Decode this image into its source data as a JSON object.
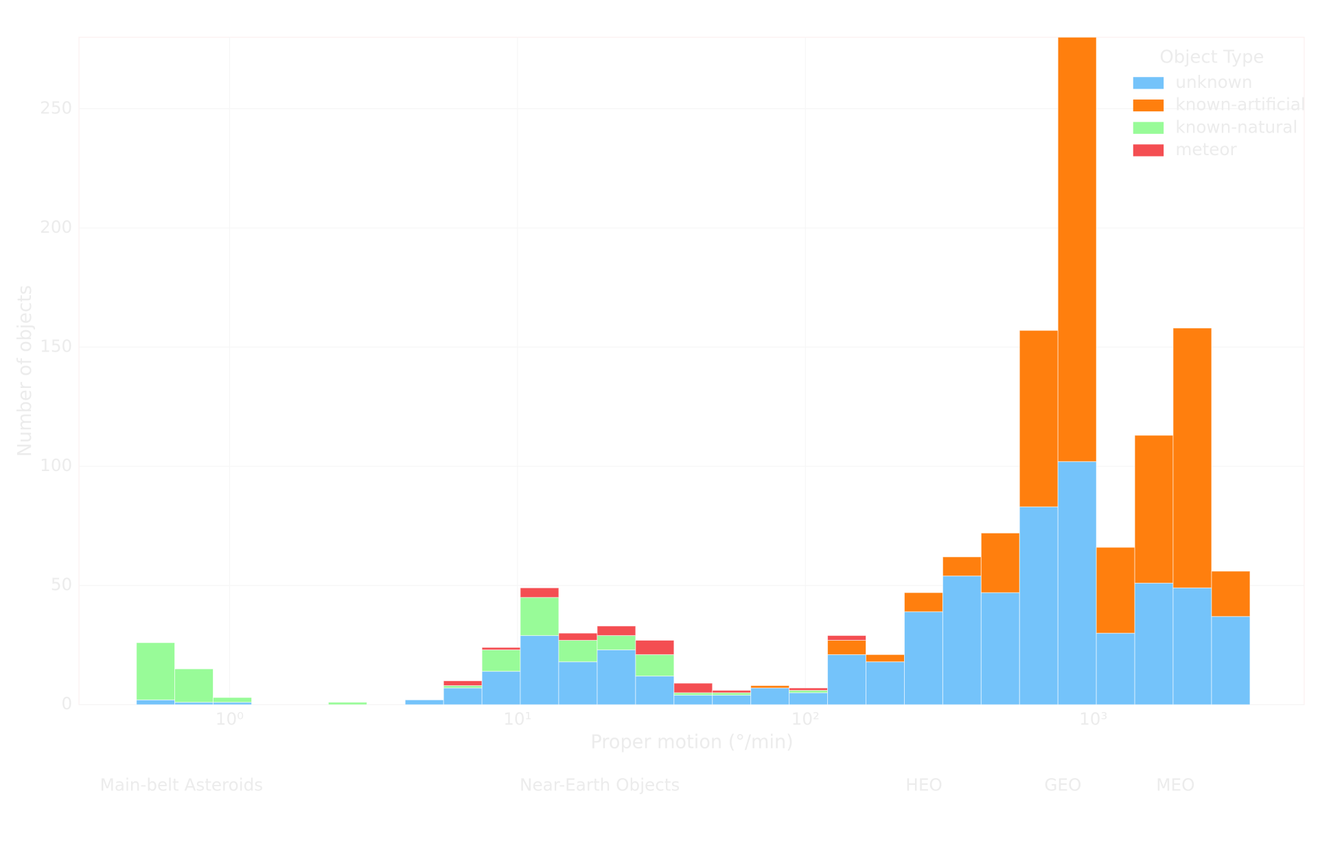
{
  "chart_data": {
    "type": "histogram",
    "x_label": "Proper motion (°/min)",
    "y_label": "Number of objects",
    "legend_title": "Object Type",
    "legend": "upper right",
    "grid": true,
    "log_x": true,
    "stacked": true,
    "bins": [
      0.475,
      0.645,
      0.877,
      1.193,
      1.622,
      2.205,
      2.998,
      4.074,
      5.539,
      7.53,
      10.23,
      13.91,
      18.92,
      25.72,
      34.96,
      47.53,
      64.61,
      87.83,
      119.4,
      162.3,
      220.7,
      300.0,
      407.8,
      554.4,
      753.7,
      1024.5,
      1393,
      1893,
      2574,
      3500
    ],
    "series": [
      {
        "name": "unknown",
        "color": "#74c3fa",
        "values": [
          2,
          1,
          1,
          0,
          0,
          0,
          0,
          2,
          7,
          14,
          29,
          18,
          23,
          12,
          4,
          4,
          7,
          5,
          21,
          18,
          39,
          54,
          47,
          83,
          102,
          30,
          51,
          49,
          37
        ]
      },
      {
        "name": "known-artificial",
        "color": "#ff7f0e",
        "values": [
          0,
          0,
          0,
          0,
          0,
          0,
          0,
          0,
          0,
          0,
          0,
          0,
          0,
          0,
          0,
          0,
          1,
          0,
          6,
          3,
          8,
          8,
          25,
          74,
          178,
          36,
          62,
          109,
          19
        ]
      },
      {
        "name": "known-natural",
        "color": "#98fb98",
        "values": [
          24,
          14,
          2,
          0,
          0,
          1,
          0,
          0,
          1,
          9,
          16,
          9,
          6,
          9,
          1,
          1,
          0,
          1,
          0,
          0,
          0,
          0,
          0,
          0,
          0,
          0,
          0,
          0,
          0
        ]
      },
      {
        "name": "meteor",
        "color": "#f44e52",
        "values": [
          0,
          0,
          0,
          0,
          0,
          0,
          0,
          0,
          2,
          1,
          4,
          3,
          4,
          6,
          4,
          1,
          0,
          1,
          2,
          0,
          0,
          0,
          0,
          0,
          0,
          0,
          0,
          0,
          0
        ]
      }
    ],
    "xlim": [
      0.3,
      5400
    ],
    "xticks": [
      {
        "value": 1,
        "label": "10⁰"
      },
      {
        "value": 10,
        "label": "10¹"
      },
      {
        "value": 100,
        "label": "10²"
      },
      {
        "value": 1000,
        "label": "10³"
      }
    ],
    "ylim": [
      0,
      280
    ],
    "yticks": [
      0,
      50,
      100,
      150,
      200,
      250
    ],
    "annotations": [
      "Main-belt Asteroids",
      "Near-Earth Objects",
      "HEO",
      "GEO",
      "MEO"
    ]
  }
}
